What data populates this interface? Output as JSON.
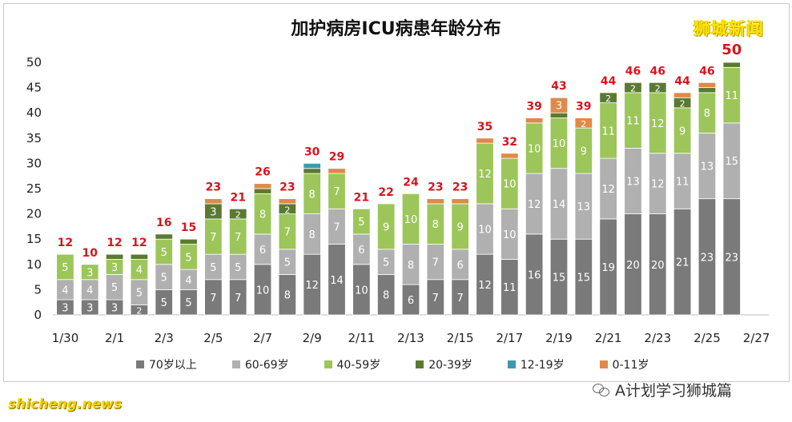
{
  "title": "加护病房ICU病患年龄分布",
  "brand": "狮城新闻",
  "footer": {
    "left": "shicheng.news",
    "right": "A计划学习狮城篇"
  },
  "colors": {
    "70_plus": "#7a7a7a",
    "60_69": "#b0b0b0",
    "40_59": "#9cc65a",
    "20_39": "#5a7a32",
    "12_19": "#3a9aae",
    "0_11": "#e0894a",
    "total_label": "#d8141d"
  },
  "chart_data": {
    "type": "bar",
    "stacked": true,
    "categories": [
      "1/30",
      "1/31",
      "2/1",
      "2/2",
      "2/3",
      "2/4",
      "2/5",
      "2/6",
      "2/7",
      "2/8",
      "2/9",
      "2/10",
      "2/11",
      "2/12",
      "2/13",
      "2/14",
      "2/15",
      "2/16",
      "2/17",
      "2/18",
      "2/19",
      "2/20",
      "2/21",
      "2/22",
      "2/23",
      "2/24",
      "2/25",
      "2/26",
      "2/27"
    ],
    "x_tick_labels": [
      "1/30",
      "2/1",
      "2/3",
      "2/5",
      "2/7",
      "2/9",
      "2/11",
      "2/13",
      "2/15",
      "2/17",
      "2/19",
      "2/21",
      "2/23",
      "2/25",
      "2/27"
    ],
    "series": [
      {
        "name": "70岁以上",
        "color_key": "70_plus",
        "values": [
          3,
          3,
          3,
          2,
          5,
          5,
          7,
          7,
          10,
          8,
          12,
          14,
          10,
          8,
          6,
          7,
          7,
          12,
          11,
          16,
          15,
          15,
          19,
          20,
          20,
          21,
          23,
          23,
          null
        ]
      },
      {
        "name": "60-69岁",
        "color_key": "60_69",
        "values": [
          4,
          4,
          5,
          5,
          5,
          4,
          5,
          5,
          6,
          5,
          8,
          7,
          6,
          5,
          8,
          7,
          6,
          10,
          10,
          12,
          14,
          13,
          12,
          13,
          12,
          11,
          13,
          15,
          null
        ]
      },
      {
        "name": "40-59岁",
        "color_key": "40_59",
        "values": [
          5,
          3,
          3,
          4,
          5,
          5,
          7,
          7,
          8,
          7,
          8,
          7,
          5,
          9,
          10,
          8,
          9,
          12,
          10,
          10,
          10,
          9,
          11,
          11,
          12,
          9,
          8,
          11,
          null
        ]
      },
      {
        "name": "20-39岁",
        "color_key": "20_39",
        "values": [
          0,
          0,
          1,
          1,
          1,
          1,
          3,
          2,
          1,
          2,
          1,
          0,
          0,
          0,
          0,
          0,
          0,
          0,
          0,
          0,
          1,
          0,
          2,
          2,
          2,
          2,
          1,
          1,
          null
        ]
      },
      {
        "name": "12-19岁",
        "color_key": "12_19",
        "values": [
          0,
          0,
          0,
          0,
          0,
          0,
          0,
          0,
          0,
          0,
          1,
          0,
          0,
          0,
          0,
          0,
          0,
          0,
          0,
          0,
          0,
          0,
          0,
          0,
          0,
          0,
          0,
          0,
          null
        ]
      },
      {
        "name": "0-11岁",
        "color_key": "0_11",
        "values": [
          0,
          0,
          0,
          0,
          0,
          0,
          1,
          0,
          1,
          1,
          0,
          1,
          0,
          0,
          0,
          1,
          1,
          1,
          1,
          1,
          3,
          2,
          0,
          0,
          0,
          1,
          1,
          0,
          null
        ]
      }
    ],
    "totals": [
      12,
      10,
      12,
      12,
      16,
      15,
      23,
      21,
      26,
      23,
      30,
      29,
      21,
      22,
      24,
      23,
      23,
      35,
      32,
      39,
      43,
      39,
      44,
      46,
      46,
      44,
      46,
      50,
      null
    ],
    "ylim": [
      0,
      50
    ],
    "y_ticks": [
      0,
      5,
      10,
      15,
      20,
      25,
      30,
      35,
      40,
      45,
      50
    ],
    "legend_position": "bottom",
    "grid": false
  }
}
